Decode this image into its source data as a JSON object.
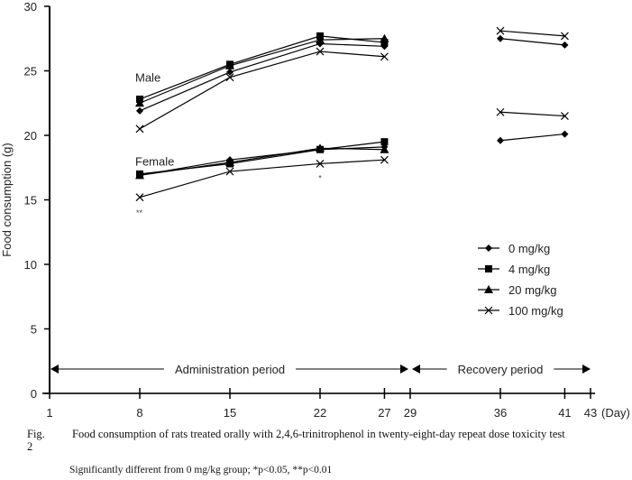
{
  "chart_data": {
    "type": "line",
    "title": "",
    "xlabel": "(Day)",
    "ylabel": "Food consumption (g)",
    "ylim": [
      0,
      30
    ],
    "xlim": [
      1,
      43
    ],
    "grid": false,
    "yticks": [
      0,
      5,
      10,
      15,
      20,
      25,
      30
    ],
    "xticks": [
      1,
      8,
      15,
      22,
      27,
      29,
      36,
      41,
      43
    ],
    "legend_position": "right-middle",
    "legend": [
      {
        "name": "0 mg/kg",
        "marker": "diamond"
      },
      {
        "name": "4 mg/kg",
        "marker": "square"
      },
      {
        "name": "20 mg/kg",
        "marker": "triangle"
      },
      {
        "name": "100 mg/kg",
        "marker": "x"
      }
    ],
    "group_labels": [
      {
        "text": "Male",
        "x": 8,
        "y": 24.5
      },
      {
        "text": "Female",
        "x": 8,
        "y": 18.0
      }
    ],
    "periods": [
      {
        "label": "Administration period",
        "start": 1,
        "end": 29
      },
      {
        "label": "Recovery period",
        "start": 29,
        "end": 43
      }
    ],
    "significance": [
      {
        "text": "**",
        "x": 8,
        "y": 14.2
      },
      {
        "text": "*",
        "x": 22,
        "y": 16.9
      }
    ],
    "series": [
      {
        "name": "0 mg/kg",
        "sex": "Male",
        "marker": "diamond",
        "segments": [
          {
            "x": [
              8,
              15,
              22,
              27
            ],
            "y": [
              21.9,
              24.9,
              27.1,
              26.9
            ]
          },
          {
            "x": [
              36,
              41
            ],
            "y": [
              27.5,
              27.0
            ]
          }
        ]
      },
      {
        "name": "4 mg/kg",
        "sex": "Male",
        "marker": "square",
        "segments": [
          {
            "x": [
              8,
              15,
              22,
              27
            ],
            "y": [
              22.8,
              25.5,
              27.7,
              27.2
            ]
          }
        ]
      },
      {
        "name": "20 mg/kg",
        "sex": "Male",
        "marker": "triangle",
        "segments": [
          {
            "x": [
              8,
              15,
              22,
              27
            ],
            "y": [
              22.5,
              25.4,
              27.4,
              27.5
            ]
          }
        ]
      },
      {
        "name": "100 mg/kg",
        "sex": "Male",
        "marker": "x",
        "segments": [
          {
            "x": [
              8,
              15,
              22,
              27
            ],
            "y": [
              20.5,
              24.5,
              26.5,
              26.1
            ]
          },
          {
            "x": [
              36,
              41
            ],
            "y": [
              28.1,
              27.7
            ]
          }
        ]
      },
      {
        "name": "0 mg/kg",
        "sex": "Female",
        "marker": "diamond",
        "segments": [
          {
            "x": [
              8,
              15,
              22,
              27
            ],
            "y": [
              16.9,
              18.1,
              18.9,
              19.1
            ]
          },
          {
            "x": [
              36,
              41
            ],
            "y": [
              19.6,
              20.1
            ]
          }
        ]
      },
      {
        "name": "4 mg/kg",
        "sex": "Female",
        "marker": "square",
        "segments": [
          {
            "x": [
              8,
              15,
              22,
              27
            ],
            "y": [
              17.0,
              17.8,
              18.9,
              19.5
            ]
          }
        ]
      },
      {
        "name": "20 mg/kg",
        "sex": "Female",
        "marker": "triangle",
        "segments": [
          {
            "x": [
              8,
              15,
              22,
              27
            ],
            "y": [
              16.9,
              17.9,
              19.0,
              18.9
            ]
          }
        ]
      },
      {
        "name": "100 mg/kg",
        "sex": "Female",
        "marker": "x",
        "segments": [
          {
            "x": [
              8,
              15,
              22,
              27
            ],
            "y": [
              15.2,
              17.2,
              17.8,
              18.1
            ]
          },
          {
            "x": [
              36,
              41
            ],
            "y": [
              21.8,
              21.5
            ]
          }
        ]
      }
    ]
  },
  "caption": {
    "figure_number": "Fig. 2",
    "text": "Food consumption of rats treated orally with 2,4,6-trinitrophenol in twenty-eight-day repeat dose toxicity test"
  },
  "note": "Significantly different from 0 mg/kg group; *p<0.05, **p<0.01"
}
